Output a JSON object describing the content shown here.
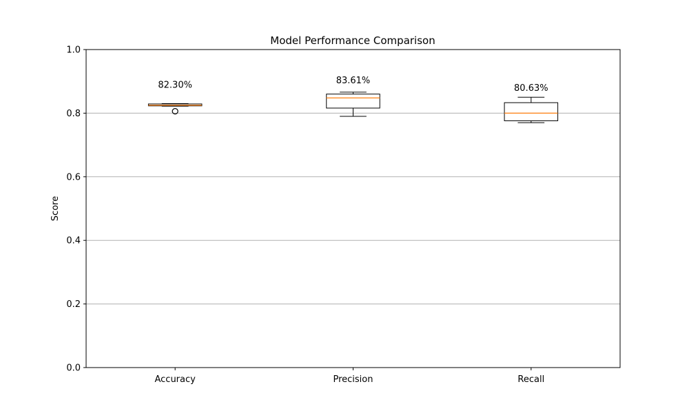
{
  "chart_data": {
    "type": "box",
    "title": "Model Performance Comparison",
    "xlabel": "",
    "ylabel": "Score",
    "ylim": [
      0,
      1
    ],
    "yticks": [
      "0.0",
      "0.2",
      "0.4",
      "0.6",
      "0.8",
      "1.0"
    ],
    "grid": "y-axis",
    "categories": [
      "Accuracy",
      "Precision",
      "Recall"
    ],
    "boxes": [
      {
        "category": "Accuracy",
        "whisker_low": 0.822,
        "q1": 0.823,
        "median": 0.825,
        "q3": 0.829,
        "whisker_high": 0.83,
        "outliers": [
          0.806
        ],
        "mean_label": "82.30%",
        "label_value": 0.88
      },
      {
        "category": "Precision",
        "whisker_low": 0.79,
        "q1": 0.816,
        "median": 0.848,
        "q3": 0.86,
        "whisker_high": 0.866,
        "outliers": [],
        "mean_label": "83.61%",
        "label_value": 0.894
      },
      {
        "category": "Recall",
        "whisker_low": 0.77,
        "q1": 0.776,
        "median": 0.8,
        "q3": 0.833,
        "whisker_high": 0.85,
        "outliers": [],
        "mean_label": "80.63%",
        "label_value": 0.87
      }
    ],
    "colors": {
      "box": "#000000",
      "median": "#ff7f0e",
      "grid": "#b0b0b0"
    }
  }
}
